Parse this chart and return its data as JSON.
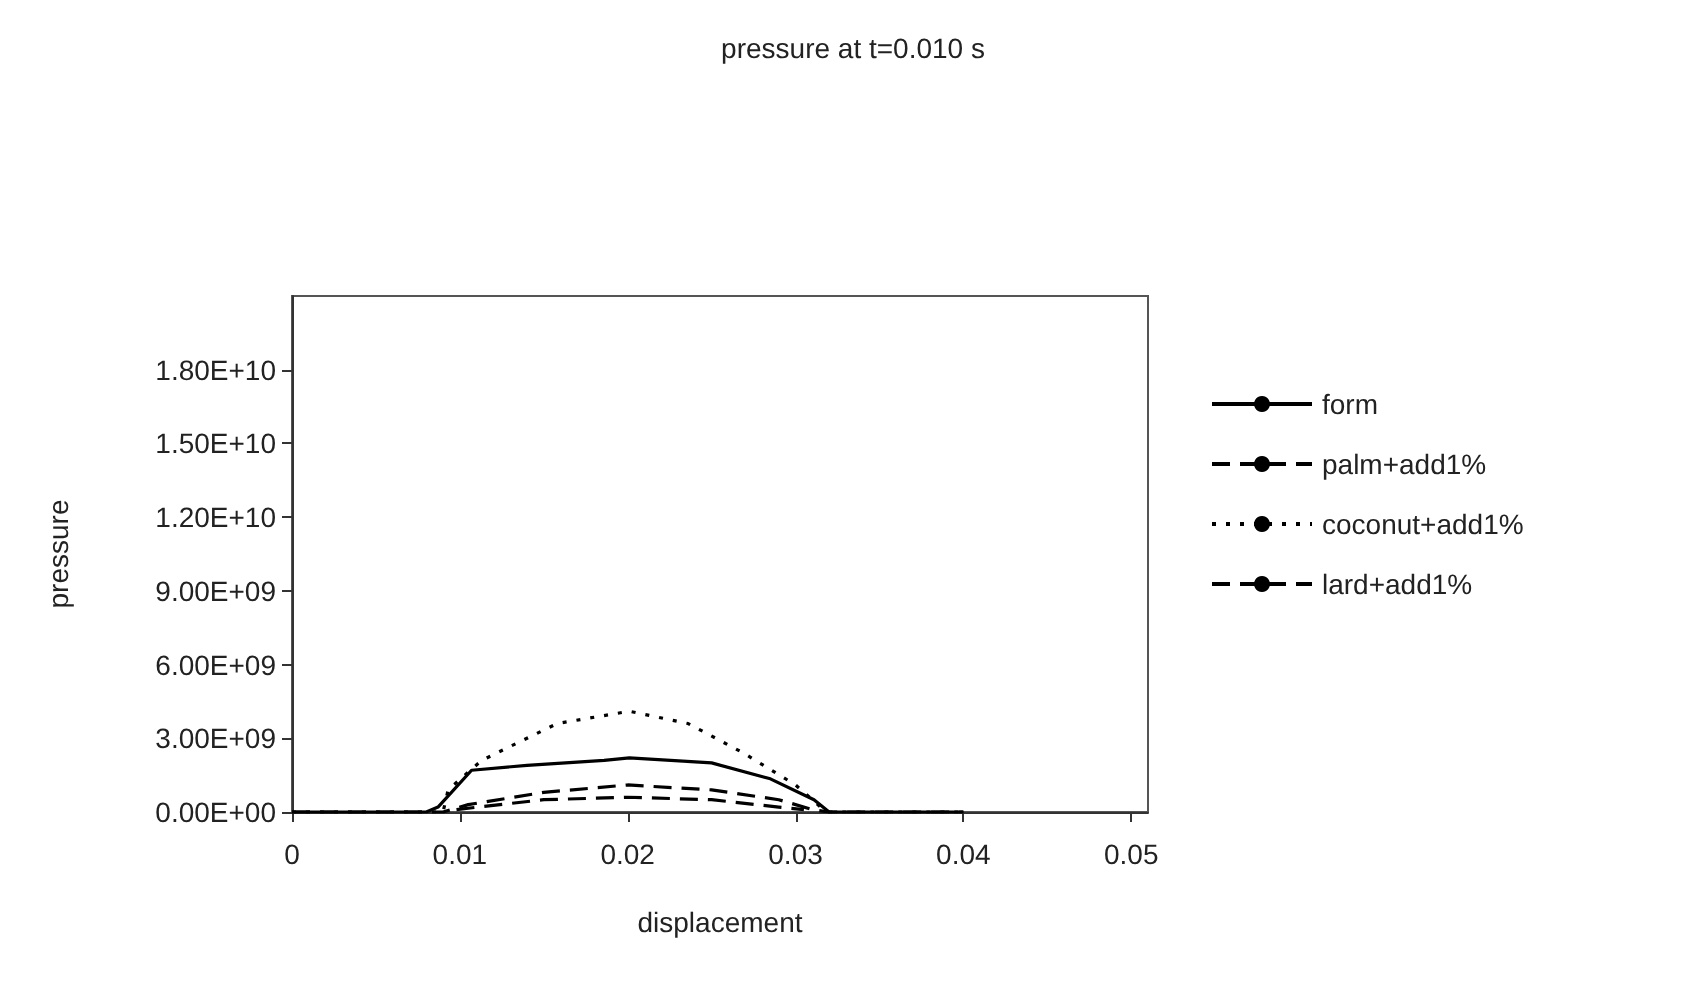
{
  "chart_data": {
    "type": "line",
    "title": "pressure at t=0.010 s",
    "xlabel": "displacement",
    "ylabel": "pressure",
    "xlim": [
      0,
      0.051
    ],
    "xticks": [
      0,
      0.01,
      0.02,
      0.03,
      0.04,
      0.05
    ],
    "ylim": [
      0,
      21000000000
    ],
    "yticks": [
      {
        "value": 0,
        "label": "0.00E+00"
      },
      {
        "value": 3000000000,
        "label": "3.00E+09"
      },
      {
        "value": 6000000000,
        "label": "6.00E+09"
      },
      {
        "value": 9000000000,
        "label": "9.00E+09"
      },
      {
        "value": 12000000000,
        "label": "1.20E+10"
      },
      {
        "value": 15000000000,
        "label": "1.50E+10"
      },
      {
        "value": 18000000000,
        "label": "1.80E+10"
      }
    ],
    "grid": false,
    "legend": "right",
    "marker": "none",
    "series": [
      {
        "name": "form",
        "color": "#000000",
        "line_style": "solid",
        "x": [
          0,
          0.008,
          0.0087,
          0.0107,
          0.014,
          0.0186,
          0.0201,
          0.025,
          0.0285,
          0.0311,
          0.032,
          0.04
        ],
        "values": [
          0,
          0,
          200000000,
          1700000000,
          1900000000,
          2100000000,
          2200000000,
          2000000000,
          1350000000,
          500000000,
          0,
          0
        ]
      },
      {
        "name": "palm+add1%",
        "color": "#000000",
        "line_style": "dashed",
        "x": [
          0,
          0.009,
          0.0105,
          0.015,
          0.02,
          0.025,
          0.029,
          0.031,
          0.032,
          0.04
        ],
        "values": [
          0,
          0,
          300000000,
          800000000,
          1100000000,
          900000000,
          500000000,
          100000000,
          0,
          0
        ]
      },
      {
        "name": "coconut+add1%",
        "color": "#000000",
        "line_style": "dotted",
        "x": [
          0,
          0.009,
          0.0093,
          0.0113,
          0.0158,
          0.0201,
          0.0236,
          0.0269,
          0.03,
          0.0315,
          0.032,
          0.04
        ],
        "values": [
          0,
          0,
          900000000,
          2100000000,
          3600000000,
          4100000000,
          3600000000,
          2400000000,
          1100000000,
          200000000,
          0,
          0
        ]
      },
      {
        "name": "lard+add1%",
        "color": "#000000",
        "line_style": "dashed",
        "x": [
          0.0098,
          0.015,
          0.02,
          0.025,
          0.029,
          0.0305
        ],
        "values": [
          100000000,
          500000000,
          600000000,
          500000000,
          200000000,
          100000000
        ]
      }
    ]
  }
}
